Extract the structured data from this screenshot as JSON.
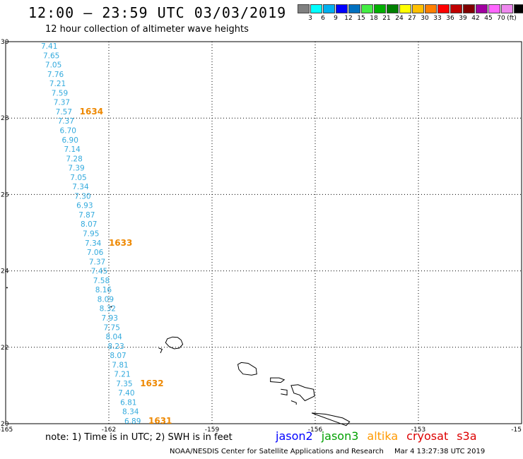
{
  "title": "12:00 — 23:59 UTC 03/03/2019",
  "subtitle": "12 hour collection of altimeter wave heights",
  "legend": {
    "colors": [
      "#808080",
      "#00ffff",
      "#00b0f0",
      "#0000ff",
      "#0070c0",
      "#44ee44",
      "#00b000",
      "#008000",
      "#ffff00",
      "#ffc000",
      "#ff8000",
      "#ff0000",
      "#c00000",
      "#800000",
      "#a000a0",
      "#ff66ff",
      "#ee88ee",
      "#000000"
    ],
    "labels": [
      "3",
      "6",
      "9",
      "12",
      "15",
      "18",
      "21",
      "24",
      "27",
      "30",
      "33",
      "36",
      "39",
      "42",
      "45",
      "70"
    ],
    "unit": "(ft)"
  },
  "map": {
    "lat_labels": [
      "30",
      "28",
      "26",
      "24",
      "22",
      "20"
    ],
    "lon_labels": [
      "-165",
      "-162",
      "-159",
      "-156",
      "-153",
      "-15"
    ],
    "lat_range": [
      20,
      30
    ],
    "lon_range": [
      -165,
      -150
    ]
  },
  "track": {
    "color": "#33aadd",
    "values": [
      "7.41",
      "7.65",
      "7.05",
      "7.76",
      "7.21",
      "7.59",
      "7.37",
      "7.57",
      "7.37",
      "6.70",
      "6.90",
      "7.14",
      "7.28",
      "7.39",
      "7.05",
      "7.34",
      "7.30",
      "6.93",
      "7.87",
      "8.07",
      "7.95",
      "7.34",
      "7.06",
      "7.37",
      "7.45",
      "7.58",
      "8.16",
      "8.09",
      "8.32",
      "7.93",
      "7.75",
      "8.04",
      "8.23",
      "8.07",
      "7.81",
      "7.21",
      "7.35",
      "7.40",
      "6.81",
      "8.34",
      "6.89"
    ],
    "pass_color": "#ee8800",
    "passes": [
      {
        "label": "1634",
        "after_index": 7
      },
      {
        "label": "1633",
        "after_index": 21
      },
      {
        "label": "1632",
        "after_index": 36
      },
      {
        "label": "1631",
        "after_index": 40
      }
    ]
  },
  "footer": {
    "note": "note:  1) Time is in UTC;  2) SWH is in feet",
    "satellites": [
      {
        "name": "jason2",
        "color": "#0000ff"
      },
      {
        "name": "jason3",
        "color": "#00a000"
      },
      {
        "name": "altika",
        "color": "#ff9900"
      },
      {
        "name": "cryosat",
        "color": "#dd0000"
      },
      {
        "name": "s3a",
        "color": "#dd0000"
      }
    ],
    "credit": "NOAA/NESDIS Center for Satellite Applications and Research",
    "timestamp": "Mar  4 13:27:38 UTC 2019"
  }
}
